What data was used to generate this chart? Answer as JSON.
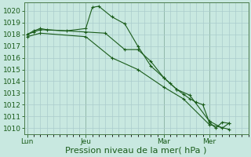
{
  "background_color": "#c8e8e0",
  "grid_color": "#aacccc",
  "line_color": "#1a5c1a",
  "spine_color": "#4a7a4a",
  "ylim": [
    1009.5,
    1020.7
  ],
  "yticks": [
    1010,
    1011,
    1012,
    1013,
    1014,
    1015,
    1016,
    1017,
    1018,
    1019,
    1020
  ],
  "xlabel": "Pression niveau de la mer( hPa )",
  "xlabel_fontsize": 8,
  "tick_fontsize": 6.5,
  "day_labels": [
    "Lun",
    "Jeu",
    "Mar",
    "Mer"
  ],
  "day_positions": [
    0,
    36,
    84,
    112
  ],
  "vline_positions": [
    0,
    36,
    84,
    112
  ],
  "xlim": [
    -2,
    136
  ],
  "series1_x": [
    0,
    4,
    8,
    24,
    36,
    40,
    44,
    52,
    60,
    68,
    76,
    84,
    88,
    92,
    96,
    100,
    104,
    108,
    112,
    116,
    120,
    124
  ],
  "series1_y": [
    1018.0,
    1018.2,
    1018.4,
    1018.3,
    1018.5,
    1020.3,
    1020.4,
    1019.5,
    1018.9,
    1017.0,
    1015.3,
    1014.3,
    1013.8,
    1013.3,
    1012.9,
    1012.5,
    1012.2,
    1012.0,
    1010.5,
    1010.0,
    1010.5,
    1010.4
  ],
  "series2_x": [
    0,
    4,
    8,
    12,
    36,
    48,
    60,
    68,
    76,
    84,
    92,
    100,
    112,
    120,
    124
  ],
  "series2_y": [
    1018.0,
    1018.3,
    1018.5,
    1018.4,
    1018.2,
    1018.1,
    1016.7,
    1016.7,
    1015.7,
    1014.3,
    1013.3,
    1012.8,
    1010.6,
    1010.0,
    1010.4
  ],
  "series3_x": [
    0,
    8,
    36,
    52,
    68,
    84,
    96,
    112,
    124
  ],
  "series3_y": [
    1017.8,
    1018.1,
    1017.8,
    1016.0,
    1015.0,
    1013.5,
    1012.5,
    1010.3,
    1009.9
  ]
}
